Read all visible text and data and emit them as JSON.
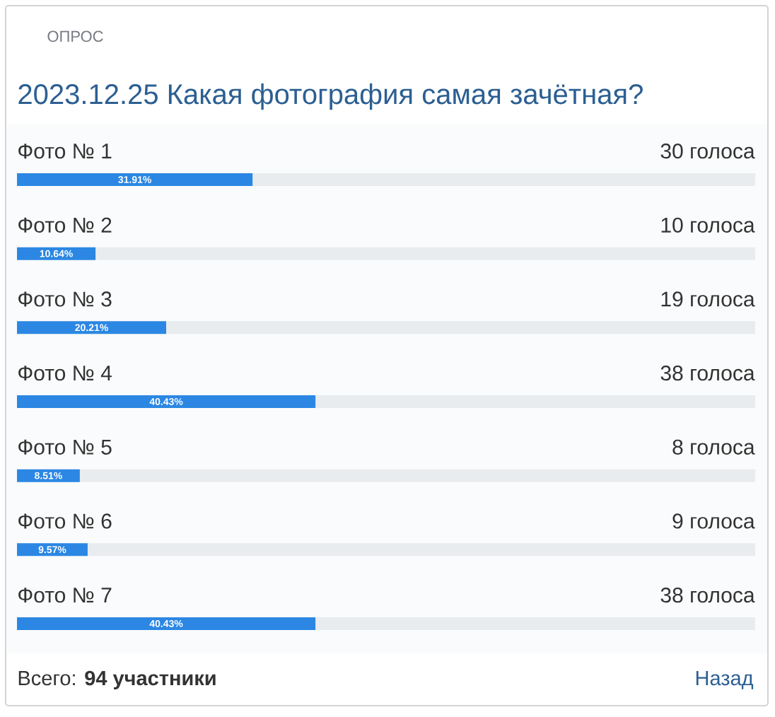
{
  "chart_data": {
    "type": "bar",
    "orientation": "horizontal",
    "subtitle": "ОПРОС",
    "title": "2023.12.25 Какая фотография самая зачётная?",
    "categories": [
      "Фото № 1",
      "Фото № 2",
      "Фото № 3",
      "Фото № 4",
      "Фото № 5",
      "Фото № 6",
      "Фото № 7"
    ],
    "values": [
      31.91,
      10.64,
      20.21,
      40.43,
      8.51,
      9.57,
      40.43
    ],
    "value_labels": [
      "31.91%",
      "10.64%",
      "20.21%",
      "40.43%",
      "8.51%",
      "9.57%",
      "40.43%"
    ],
    "color": "#2b87e3",
    "xlim": [
      0,
      100
    ],
    "tick_labels": "y",
    "annotations": [
      "30 голоса",
      "10 голоса",
      "19 голоса",
      "38 голоса",
      "8 голоса",
      "9 голоса",
      "38 голоса",
      "Всего: **94 участники**",
      "Назад"
    ]
  }
}
